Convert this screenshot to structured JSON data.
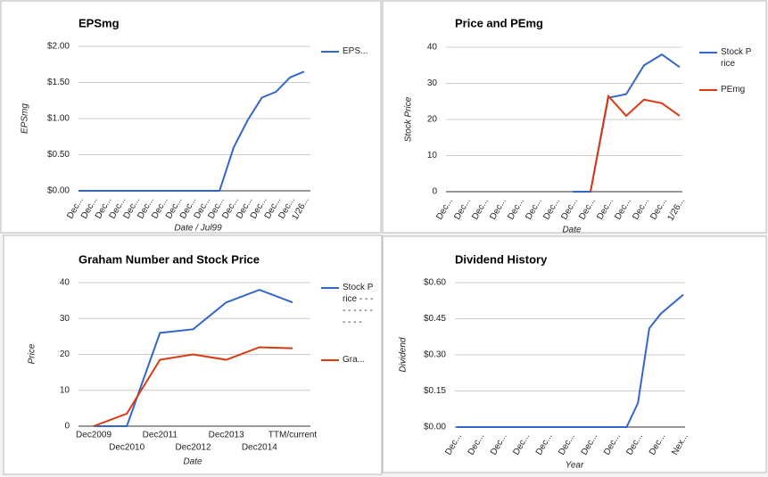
{
  "chart_data": [
    {
      "type": "line",
      "title": "EPSmg",
      "x_label": "Date / Jul99",
      "y_label": "EPSmg",
      "categories": [
        "Dec...",
        "Dec...",
        "Dec...",
        "Dec...",
        "Dec...",
        "Dec...",
        "Dec...",
        "Dec...",
        "Dec...",
        "Dec...",
        "Dec...",
        "Dec...",
        "Dec...",
        "Dec...",
        "Dec...",
        "Dec...",
        "1/26..."
      ],
      "series": [
        {
          "name": "EPS...",
          "color": "#3366cc",
          "values": [
            0,
            0,
            0,
            0,
            0,
            0,
            0,
            0,
            0,
            0,
            0,
            0.6,
            0.98,
            1.29,
            1.37,
            1.57,
            1.65
          ]
        }
      ],
      "ylim": [
        0,
        2
      ],
      "yticks": [
        {
          "value": 0,
          "label": "$0.00"
        },
        {
          "value": 0.5,
          "label": "$0.50"
        },
        {
          "value": 1,
          "label": "$1.00"
        },
        {
          "value": 1.5,
          "label": "$1.50"
        },
        {
          "value": 2,
          "label": "$2.00"
        }
      ],
      "grid": true,
      "legend": "right"
    },
    {
      "type": "line",
      "title": "Price and PEmg",
      "x_label": "Date",
      "y_label": "Stock Price",
      "categories": [
        "Dec...",
        "Dec...",
        "Dec...",
        "Dec...",
        "Dec...",
        "Dec...",
        "Dec...",
        "Dec...",
        "Dec...",
        "Dec...",
        "Dec...",
        "Dec...",
        "Dec...",
        "1/26..."
      ],
      "series": [
        {
          "name": "Stock Price",
          "color": "#3366cc",
          "values": [
            null,
            null,
            null,
            null,
            null,
            null,
            null,
            0,
            0,
            26,
            27,
            35,
            38,
            34.5
          ]
        },
        {
          "name": "PEmg",
          "color": "#dc3912",
          "values": [
            null,
            null,
            null,
            null,
            null,
            null,
            null,
            null,
            0,
            26.5,
            21,
            25.5,
            24.5,
            21
          ]
        }
      ],
      "ylim": [
        0,
        40
      ],
      "yticks": [
        0,
        10,
        20,
        30,
        40
      ],
      "grid": true,
      "legend": "right"
    },
    {
      "type": "line",
      "title": "Graham Number and Stock Price",
      "x_label": "Date",
      "y_label": "Price",
      "categories": [
        "Dec2009",
        "Dec2010",
        "Dec2011",
        "Dec2012",
        "Dec2013",
        "Dec2014",
        "TTM/current"
      ],
      "series": [
        {
          "name": "Stock Price - - - - - - - - - - - - -",
          "color": "#3366cc",
          "values": [
            0,
            0,
            26,
            27,
            34.5,
            38,
            34.5
          ]
        },
        {
          "name": "Gra...",
          "color": "#dc3912",
          "values": [
            0,
            3.5,
            18.5,
            20,
            18.5,
            22,
            21.7
          ]
        }
      ],
      "ylim": [
        0,
        40
      ],
      "yticks": [
        0,
        10,
        20,
        30,
        40
      ],
      "grid": true,
      "legend": "right"
    },
    {
      "type": "line",
      "title": "Dividend History",
      "x_label": "Year",
      "y_label": "Dividend",
      "categories": [
        "Dec...",
        null,
        "Dec...",
        null,
        "Dec...",
        null,
        "Dec...",
        null,
        "Dec...",
        null,
        "Dec...",
        null,
        "Dec...",
        null,
        "Dec...",
        null,
        "Dec...",
        null,
        "Dec...",
        null,
        "Nex..."
      ],
      "series": [
        {
          "name": null,
          "color": "#3366cc",
          "values": [
            0,
            0,
            0,
            0,
            0,
            0,
            0,
            0,
            0,
            0,
            0,
            0,
            0,
            0,
            0,
            0,
            0.1,
            0.41,
            0.47,
            0.51,
            0.55
          ]
        }
      ],
      "ylim": [
        0,
        0.6
      ],
      "yticks": [
        {
          "value": 0,
          "label": "$0.00"
        },
        {
          "value": 0.15,
          "label": "$0.15"
        },
        {
          "value": 0.3,
          "label": "$0.30"
        },
        {
          "value": 0.45,
          "label": "$0.45"
        },
        {
          "value": 0.6,
          "label": "$0.60"
        }
      ],
      "grid": true
    }
  ]
}
